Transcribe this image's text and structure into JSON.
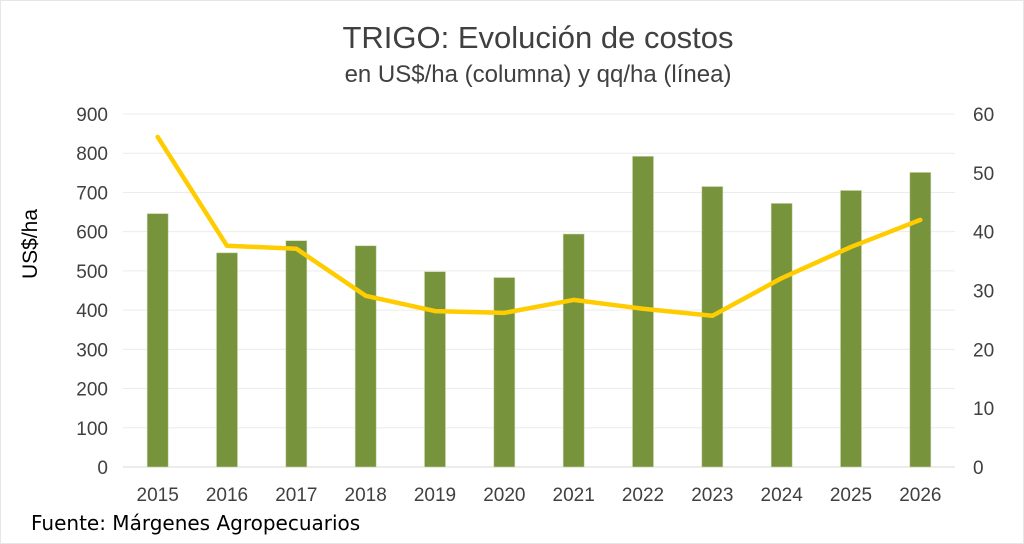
{
  "chart_data": {
    "type": "bar",
    "title": "TRIGO: Evolución de costos",
    "subtitle": "en US$/ha (columna) y qq/ha (línea)",
    "xlabel": "",
    "ylabel": "US$/ha",
    "y2label": "",
    "categories": [
      "2015",
      "2016",
      "2017",
      "2018",
      "2019",
      "2020",
      "2021",
      "2022",
      "2023",
      "2024",
      "2025",
      "2026"
    ],
    "series": [
      {
        "name": "US$/ha",
        "type": "bar",
        "axis": "left",
        "color": "#77933c",
        "values": [
          646,
          546,
          577,
          564,
          498,
          483,
          594,
          792,
          715,
          672,
          705,
          751
        ]
      },
      {
        "name": "qq/ha",
        "type": "line",
        "axis": "right",
        "color": "#ffcc00",
        "values": [
          56.1,
          37.6,
          37.1,
          29.1,
          26.5,
          26.2,
          28.4,
          26.9,
          25.7,
          32.1,
          37.4,
          42.0
        ]
      }
    ],
    "ylim": [
      0,
      900
    ],
    "yticks": [
      "0",
      "100",
      "200",
      "300",
      "400",
      "500",
      "600",
      "700",
      "800",
      "900"
    ],
    "y2lim": [
      0,
      60
    ],
    "y2ticks": [
      "0",
      "10",
      "20",
      "30",
      "40",
      "50",
      "60"
    ],
    "grid": true,
    "legend": "none",
    "source": "Fuente: Márgenes Agropecuarios"
  }
}
